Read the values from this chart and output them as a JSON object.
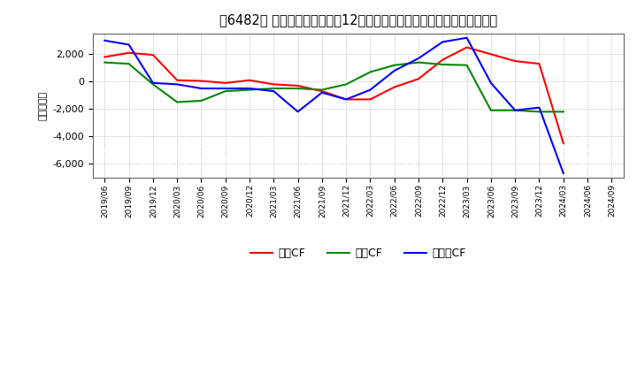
{
  "title": "［6482］ キャッシュフローの12か月移動合計の対前年同期増減額の推移",
  "ylabel": "（百万円）",
  "legend_labels": [
    "営業CF",
    "投資CF",
    "フリーCF"
  ],
  "x_labels": [
    "2019/06",
    "2019/09",
    "2019/12",
    "2020/03",
    "2020/06",
    "2020/09",
    "2020/12",
    "2021/03",
    "2021/06",
    "2021/09",
    "2021/12",
    "2022/03",
    "2022/06",
    "2022/09",
    "2022/12",
    "2023/03",
    "2023/06",
    "2023/09",
    "2023/12",
    "2024/03",
    "2024/06",
    "2024/09"
  ],
  "series": [
    {
      "name": "営業CF",
      "color": "#ff0000",
      "values": [
        1800,
        2100,
        1950,
        100,
        50,
        -100,
        100,
        -200,
        -300,
        -700,
        -1300,
        -1300,
        -400,
        200,
        1600,
        2500,
        2000,
        1500,
        1300,
        -4500,
        null,
        null
      ]
    },
    {
      "name": "投資CF",
      "color": "#008800",
      "values": [
        1400,
        1300,
        -200,
        -1500,
        -1400,
        -700,
        -600,
        -500,
        -500,
        -600,
        -200,
        700,
        1200,
        1400,
        1250,
        1200,
        -2100,
        -2100,
        -2200,
        -2200,
        null,
        null
      ]
    },
    {
      "name": "フリーCF",
      "color": "#0000ff",
      "values": [
        3000,
        2700,
        -100,
        -200,
        -500,
        -500,
        -500,
        -700,
        -2200,
        -800,
        -1300,
        -600,
        800,
        1700,
        2900,
        3200,
        -100,
        -2100,
        -1900,
        -6700,
        null,
        null
      ]
    }
  ],
  "ylim": [
    -7000,
    3500
  ],
  "yticks": [
    -6000,
    -4000,
    -2000,
    0,
    2000
  ],
  "background_color": "#ffffff",
  "grid_color": "#aaaaaa",
  "title_fontsize": 10.5
}
